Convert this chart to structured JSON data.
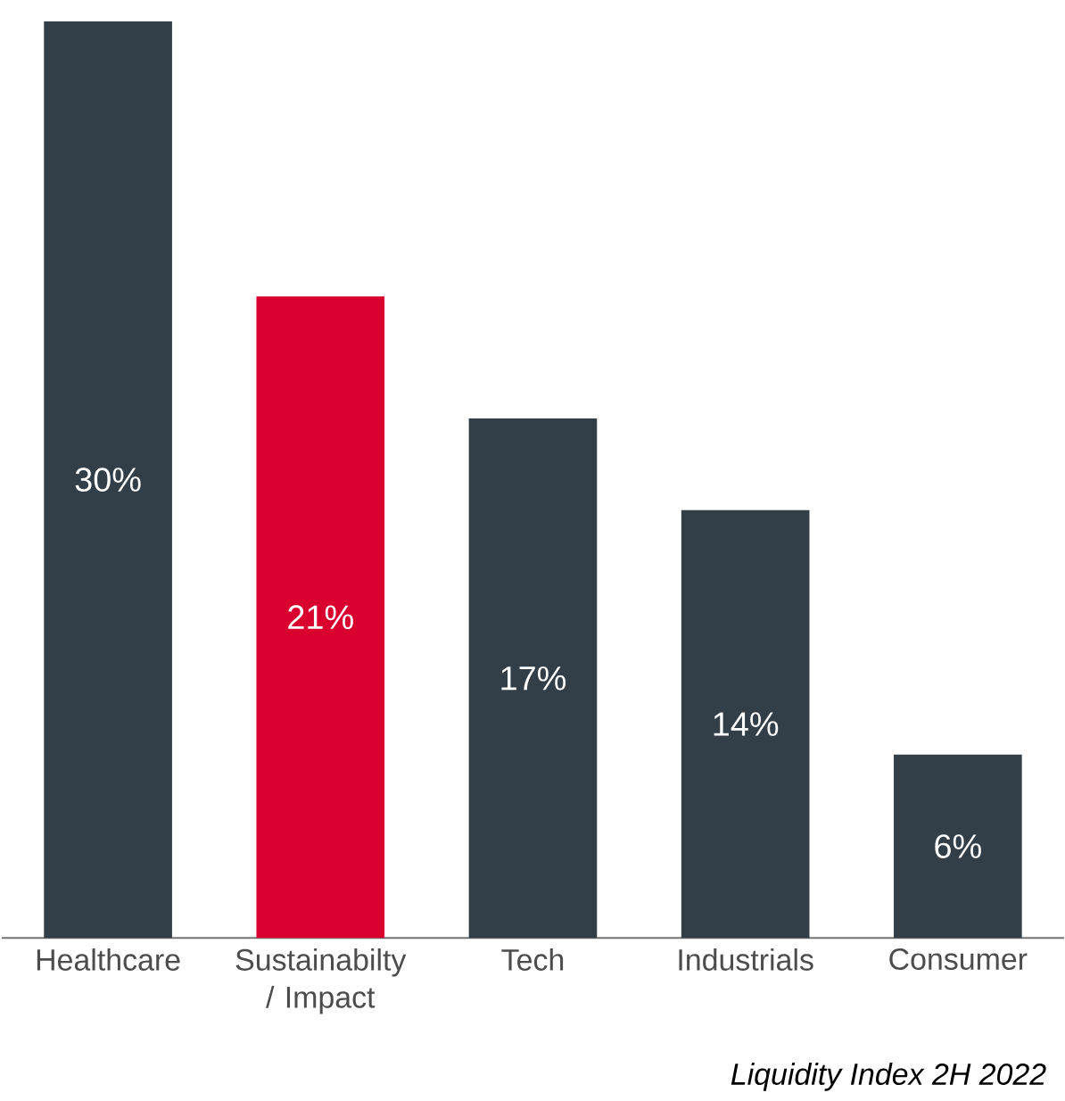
{
  "chart_data": {
    "type": "bar",
    "categories": [
      "Healthcare",
      "Sustainabilty / Impact",
      "Tech",
      "Industrials",
      "Consumer"
    ],
    "values": [
      30,
      21,
      17,
      14,
      6
    ],
    "value_labels": [
      "30%",
      "21%",
      "17%",
      "14%",
      "6%"
    ],
    "colors": [
      "#323e48",
      "#d9002f",
      "#323e48",
      "#323e48",
      "#323e48"
    ],
    "ylim": [
      0,
      30
    ],
    "annotations": [
      "Liquidity Index 2H 2022"
    ]
  }
}
